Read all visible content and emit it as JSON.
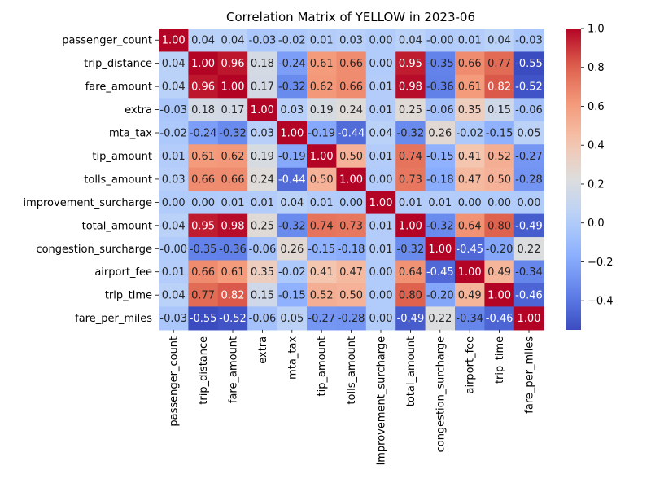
{
  "chart_data": {
    "type": "heatmap",
    "title": "Correlation Matrix of YELLOW in 2023-06",
    "xlabel": "",
    "ylabel": "",
    "labels": [
      "passenger_count",
      "trip_distance",
      "fare_amount",
      "extra",
      "mta_tax",
      "tip_amount",
      "tolls_amount",
      "improvement_surcharge",
      "total_amount",
      "congestion_surcharge",
      "airport_fee",
      "trip_time",
      "fare_per_miles"
    ],
    "matrix": [
      [
        1.0,
        0.04,
        0.04,
        -0.03,
        -0.02,
        0.01,
        0.03,
        0.0,
        0.04,
        -0.0,
        0.01,
        0.04,
        -0.03
      ],
      [
        0.04,
        1.0,
        0.96,
        0.18,
        -0.24,
        0.61,
        0.66,
        0.0,
        0.95,
        -0.35,
        0.66,
        0.77,
        -0.55
      ],
      [
        0.04,
        0.96,
        1.0,
        0.17,
        -0.32,
        0.62,
        0.66,
        0.01,
        0.98,
        -0.36,
        0.61,
        0.82,
        -0.52
      ],
      [
        -0.03,
        0.18,
        0.17,
        1.0,
        0.03,
        0.19,
        0.24,
        0.01,
        0.25,
        -0.06,
        0.35,
        0.15,
        -0.06
      ],
      [
        -0.02,
        -0.24,
        -0.32,
        0.03,
        1.0,
        -0.19,
        -0.44,
        0.04,
        -0.32,
        0.26,
        -0.02,
        -0.15,
        0.05
      ],
      [
        0.01,
        0.61,
        0.62,
        0.19,
        -0.19,
        1.0,
        0.5,
        0.01,
        0.74,
        -0.15,
        0.41,
        0.52,
        -0.27
      ],
      [
        0.03,
        0.66,
        0.66,
        0.24,
        -0.44,
        0.5,
        1.0,
        0.0,
        0.73,
        -0.18,
        0.47,
        0.5,
        -0.28
      ],
      [
        0.0,
        0.0,
        0.01,
        0.01,
        0.04,
        0.01,
        0.0,
        1.0,
        0.01,
        0.01,
        0.0,
        0.0,
        0.0
      ],
      [
        0.04,
        0.95,
        0.98,
        0.25,
        -0.32,
        0.74,
        0.73,
        0.01,
        1.0,
        -0.32,
        0.64,
        0.8,
        -0.49
      ],
      [
        -0.0,
        -0.35,
        -0.36,
        -0.06,
        0.26,
        -0.15,
        -0.18,
        0.01,
        -0.32,
        1.0,
        -0.45,
        -0.2,
        0.22
      ],
      [
        0.01,
        0.66,
        0.61,
        0.35,
        -0.02,
        0.41,
        0.47,
        0.0,
        0.64,
        -0.45,
        1.0,
        0.49,
        -0.34
      ],
      [
        0.04,
        0.77,
        0.82,
        0.15,
        -0.15,
        0.52,
        0.5,
        0.0,
        0.8,
        -0.2,
        0.49,
        1.0,
        -0.46
      ],
      [
        -0.03,
        -0.55,
        -0.52,
        -0.06,
        0.05,
        -0.27,
        -0.28,
        0.0,
        -0.49,
        0.22,
        -0.34,
        -0.46,
        1.0
      ]
    ],
    "value_format": "2 decimals",
    "colormap": "coolwarm",
    "color_range": [
      -0.55,
      1.0
    ],
    "colorbar_ticks": [
      "1.0",
      "0.8",
      "0.6",
      "0.4",
      "0.2",
      "0.0",
      "−0.2",
      "−0.4"
    ],
    "colorbar_tick_values": [
      1.0,
      0.8,
      0.6,
      0.4,
      0.2,
      0.0,
      -0.2,
      -0.4
    ],
    "grid": false,
    "legend": "colorbar-right"
  }
}
